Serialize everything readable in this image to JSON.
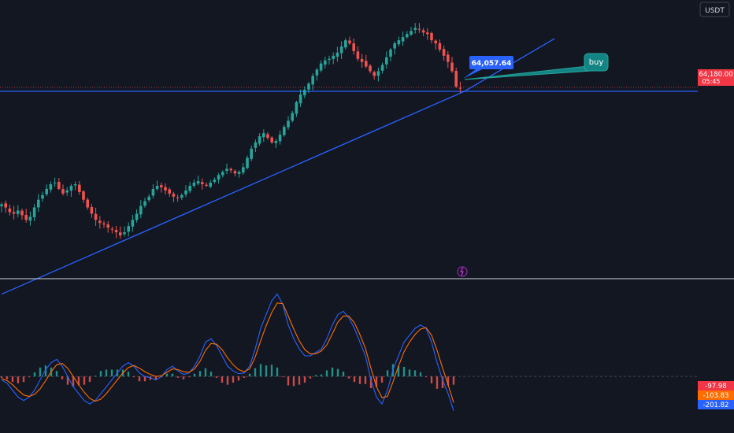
{
  "currency_label": "USDT",
  "colors": {
    "background": "#131722",
    "up": "#26a69a",
    "down": "#ef5350",
    "trendline": "#2962ff",
    "macd_line": "#2962ff",
    "signal_line": "#ff6d00",
    "price_label_bg": "#f23645",
    "buy_label_bg": "#138484",
    "price_callout_bg": "#2962ff"
  },
  "price_marker": {
    "price": "64,180.00",
    "countdown": "05:45"
  },
  "callout": {
    "price": "64,057.64"
  },
  "buy_label": {
    "text": "buy"
  },
  "macd_values": {
    "histogram": "-97.98",
    "signal": "-103.83",
    "macd": "-201.82"
  },
  "chart_data": [
    {
      "type": "candlestick",
      "title": "",
      "ylim": [
        58000,
        67000
      ],
      "close_series": [
        60400,
        60300,
        60150,
        60100,
        60200,
        60050,
        59900,
        60000,
        60300,
        60550,
        60700,
        60900,
        61050,
        61100,
        60900,
        60750,
        60850,
        61000,
        61050,
        60800,
        60550,
        60300,
        60100,
        59900,
        59800,
        59750,
        59650,
        59600,
        59500,
        59400,
        59500,
        59700,
        59900,
        60100,
        60350,
        60500,
        60650,
        60900,
        61000,
        60950,
        60850,
        60750,
        60650,
        60600,
        60700,
        60850,
        61000,
        61100,
        61150,
        61050,
        61000,
        61100,
        61200,
        61350,
        61450,
        61550,
        61500,
        61400,
        61450,
        61600,
        61900,
        62200,
        62400,
        62600,
        62700,
        62550,
        62400,
        62450,
        62650,
        62900,
        63100,
        63350,
        63700,
        63950,
        64100,
        64300,
        64550,
        64750,
        64950,
        65050,
        65100,
        65200,
        65300,
        65500,
        65700,
        65600,
        65350,
        65100,
        65000,
        64850,
        64700,
        64550,
        64700,
        64900,
        65150,
        65400,
        65600,
        65700,
        65800,
        65900,
        66000,
        66100,
        66050,
        65950,
        65900,
        65700,
        65600,
        65400,
        65200,
        65000,
        64700,
        64200,
        64150
      ],
      "trendlines": [
        {
          "from": [
            0,
            57500
          ],
          "to": [
            113,
            64050
          ]
        },
        {
          "from": [
            113,
            64050
          ],
          "to": [
            135,
            65750
          ]
        }
      ],
      "horizontal_lines": [
        64050,
        64180
      ]
    },
    {
      "type": "line",
      "title": "MACD",
      "ylim": [
        -800,
        1400
      ],
      "series": [
        {
          "values": [
            -50,
            -100,
            -200,
            -300,
            -350,
            -300,
            -200,
            -50,
            100,
            200,
            250,
            150,
            0,
            -150,
            -250,
            -350,
            -400,
            -350,
            -250,
            -150,
            -50,
            50,
            150,
            200,
            150,
            50,
            0,
            -20,
            -50,
            0,
            100,
            150,
            80,
            30,
            50,
            150,
            300,
            500,
            550,
            450,
            300,
            150,
            80,
            40,
            50,
            150,
            400,
            700,
            900,
            1100,
            1200,
            1050,
            750,
            550,
            400,
            300,
            300,
            350,
            400,
            550,
            750,
            900,
            950,
            850,
            700,
            500,
            300,
            -50,
            -300,
            -400,
            -200,
            100,
            300,
            500,
            600,
            700,
            750,
            700,
            500,
            200,
            -50,
            -250,
            -500
          ]
        },
        {
          "values": [
            -30,
            -60,
            -120,
            -200,
            -270,
            -290,
            -260,
            -180,
            -60,
            70,
            170,
            190,
            120,
            0,
            -120,
            -230,
            -320,
            -360,
            -330,
            -250,
            -150,
            -50,
            50,
            130,
            160,
            120,
            70,
            30,
            0,
            10,
            60,
            110,
            100,
            70,
            60,
            110,
            220,
            380,
            480,
            470,
            390,
            270,
            170,
            100,
            70,
            110,
            280,
            520,
            740,
            930,
            1070,
            1060,
            880,
            690,
            520,
            390,
            330,
            330,
            370,
            460,
            620,
            790,
            880,
            880,
            780,
            610,
            410,
            120,
            -150,
            -310,
            -290,
            -80,
            150,
            360,
            500,
            610,
            690,
            710,
            600,
            380,
            120,
            -120,
            -380
          ]
        }
      ],
      "histogram": [
        -20,
        -40,
        -80,
        -100,
        -80,
        -10,
        60,
        130,
        160,
        130,
        80,
        -40,
        -120,
        -150,
        -130,
        -120,
        -80,
        10,
        80,
        100,
        100,
        100,
        100,
        70,
        -10,
        -70,
        -70,
        -50,
        -50,
        -10,
        40,
        40,
        -20,
        -40,
        -10,
        40,
        80,
        120,
        70,
        -20,
        -90,
        -120,
        -90,
        -60,
        -20,
        40,
        120,
        180,
        160,
        170,
        130,
        -10,
        -130,
        -140,
        -120,
        -90,
        -30,
        20,
        30,
        90,
        130,
        110,
        70,
        -30,
        -80,
        -110,
        -110,
        -170,
        -150,
        -90,
        90,
        180,
        150,
        140,
        100,
        90,
        60,
        -10,
        -100,
        -180,
        -170,
        -130,
        -120
      ]
    }
  ]
}
